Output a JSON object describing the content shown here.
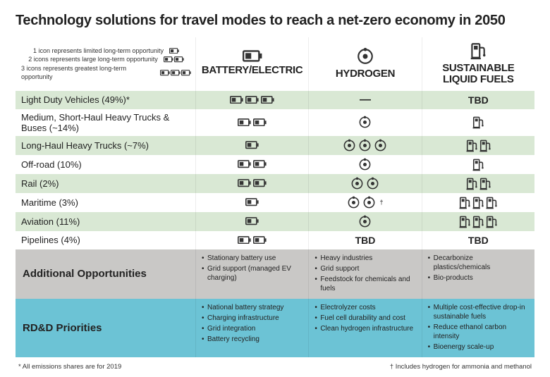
{
  "title": "Technology solutions for travel modes to reach a net-zero economy in 2050",
  "legend": {
    "l1": "1 icon represents limited long-term opportunity",
    "l2": "2 icons represents large long-term opportunity",
    "l3": "3 icons represents greatest long-term opportunity"
  },
  "columns": {
    "c1": "BATTERY/ELECTRIC",
    "c2": "HYDROGEN",
    "c3": "SUSTAINABLE LIQUID FUELS"
  },
  "rows": [
    {
      "label": "Light Duty Vehicles (49%)*",
      "battery": 3,
      "hydrogen": "dash",
      "fuels": "TBD",
      "alt": true
    },
    {
      "label": "Medium, Short-Haul Heavy Trucks & Buses (~14%)",
      "battery": 2,
      "hydrogen": 1,
      "fuels": 1,
      "alt": false
    },
    {
      "label": "Long-Haul Heavy Trucks (~7%)",
      "battery": 1,
      "hydrogen": 3,
      "fuels": 2,
      "alt": true
    },
    {
      "label": "Off-road (10%)",
      "battery": 2,
      "hydrogen": 1,
      "fuels": 1,
      "alt": false
    },
    {
      "label": "Rail (2%)",
      "battery": 2,
      "hydrogen": 2,
      "fuels": 2,
      "alt": true
    },
    {
      "label": "Maritime (3%)",
      "battery": 1,
      "hydrogen": 2,
      "hydrogen_dagger": true,
      "fuels": 3,
      "alt": false
    },
    {
      "label": "Aviation (11%)",
      "battery": 1,
      "hydrogen": 1,
      "fuels": 3,
      "alt": true
    },
    {
      "label": "Pipelines (4%)",
      "battery": 2,
      "hydrogen": "TBD",
      "fuels": "TBD",
      "alt": false
    }
  ],
  "additional": {
    "label": "Additional Opportunities",
    "battery": [
      "Stationary battery use",
      "Grid support (managed EV charging)"
    ],
    "hydrogen": [
      "Heavy industries",
      "Grid support",
      "Feedstock for chemicals and fuels"
    ],
    "fuels": [
      "Decarbonize plastics/chemicals",
      "Bio-products"
    ]
  },
  "priorities": {
    "label": "RD&D Priorities",
    "battery": [
      "National battery strategy",
      "Charging infrastructure",
      "Grid integration",
      "Battery recycling"
    ],
    "hydrogen": [
      "Electrolyzer costs",
      "Fuel cell durability and cost",
      "Clean hydrogen infrastructure"
    ],
    "fuels": [
      "Multiple cost-effective drop-in sustainable fuels",
      "Reduce ethanol carbon intensity",
      "Bioenergy scale-up"
    ]
  },
  "footnotes": {
    "left": "* All emissions shares are for 2019",
    "right": "† Includes hydrogen for ammonia and methanol"
  },
  "colors": {
    "icon": "#333333",
    "alt_row": "#d9e8d4",
    "gray": "#c9c8c6",
    "blue": "#6cc3d5"
  },
  "tbd_text": "TBD",
  "dash_text": "—"
}
